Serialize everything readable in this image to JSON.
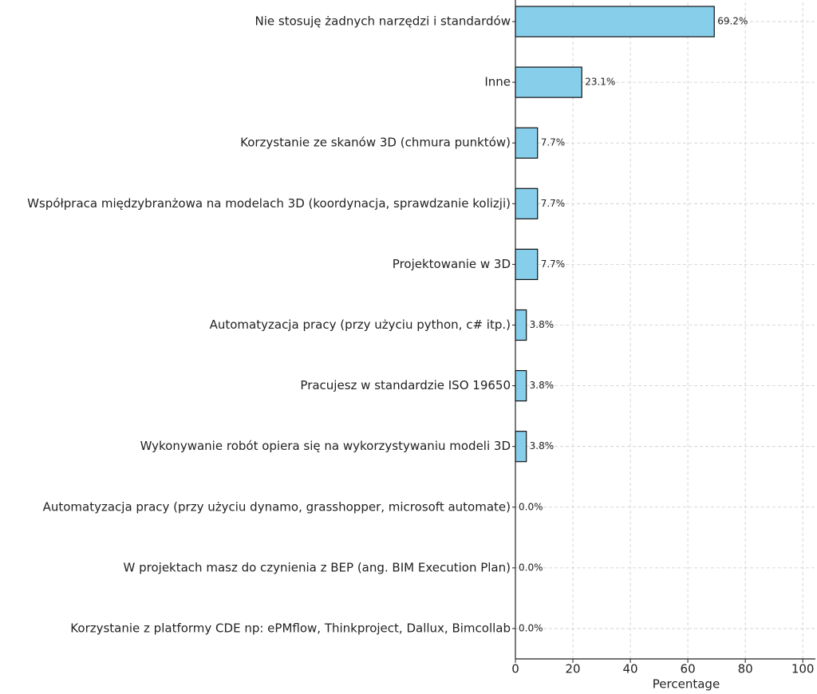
{
  "chart_data": {
    "type": "barh",
    "x_label": "Percentage",
    "categories": [
      "Nie stosuję żadnych narzędzi i standardów",
      "Inne",
      "Korzystanie ze skanów 3D (chmura punktów)",
      "Współpraca międzybranżowa na modelach 3D (koordynacja, sprawdzanie kolizji)",
      "Projektowanie w 3D",
      "Automatyzacja pracy (przy użyciu python, c# itp.)",
      "Pracujesz w standardzie ISO 19650",
      "Wykonywanie robót opiera się na wykorzystywaniu modeli 3D",
      "Automatyzacja pracy (przy użyciu dynamo, grasshopper, microsoft automate)",
      "W projektach masz do czynienia z BEP (ang. BIM Execution Plan)",
      "Korzystanie z platformy CDE np:  ePMflow, Thinkproject, Dallux, Bimcollab"
    ],
    "values": [
      69.2,
      23.1,
      7.7,
      7.7,
      7.7,
      3.8,
      3.8,
      3.8,
      0.0,
      0.0,
      0.0
    ],
    "value_labels": [
      "69.2%",
      "23.1%",
      "7.7%",
      "7.7%",
      "7.7%",
      "3.8%",
      "3.8%",
      "3.8%",
      "0.0%",
      "0.0%",
      "0.0%"
    ],
    "color": "#87ceeb",
    "xlim": [
      0,
      104.4
    ],
    "xticks": [
      0,
      20,
      40,
      60,
      80,
      100
    ],
    "grid": true
  }
}
